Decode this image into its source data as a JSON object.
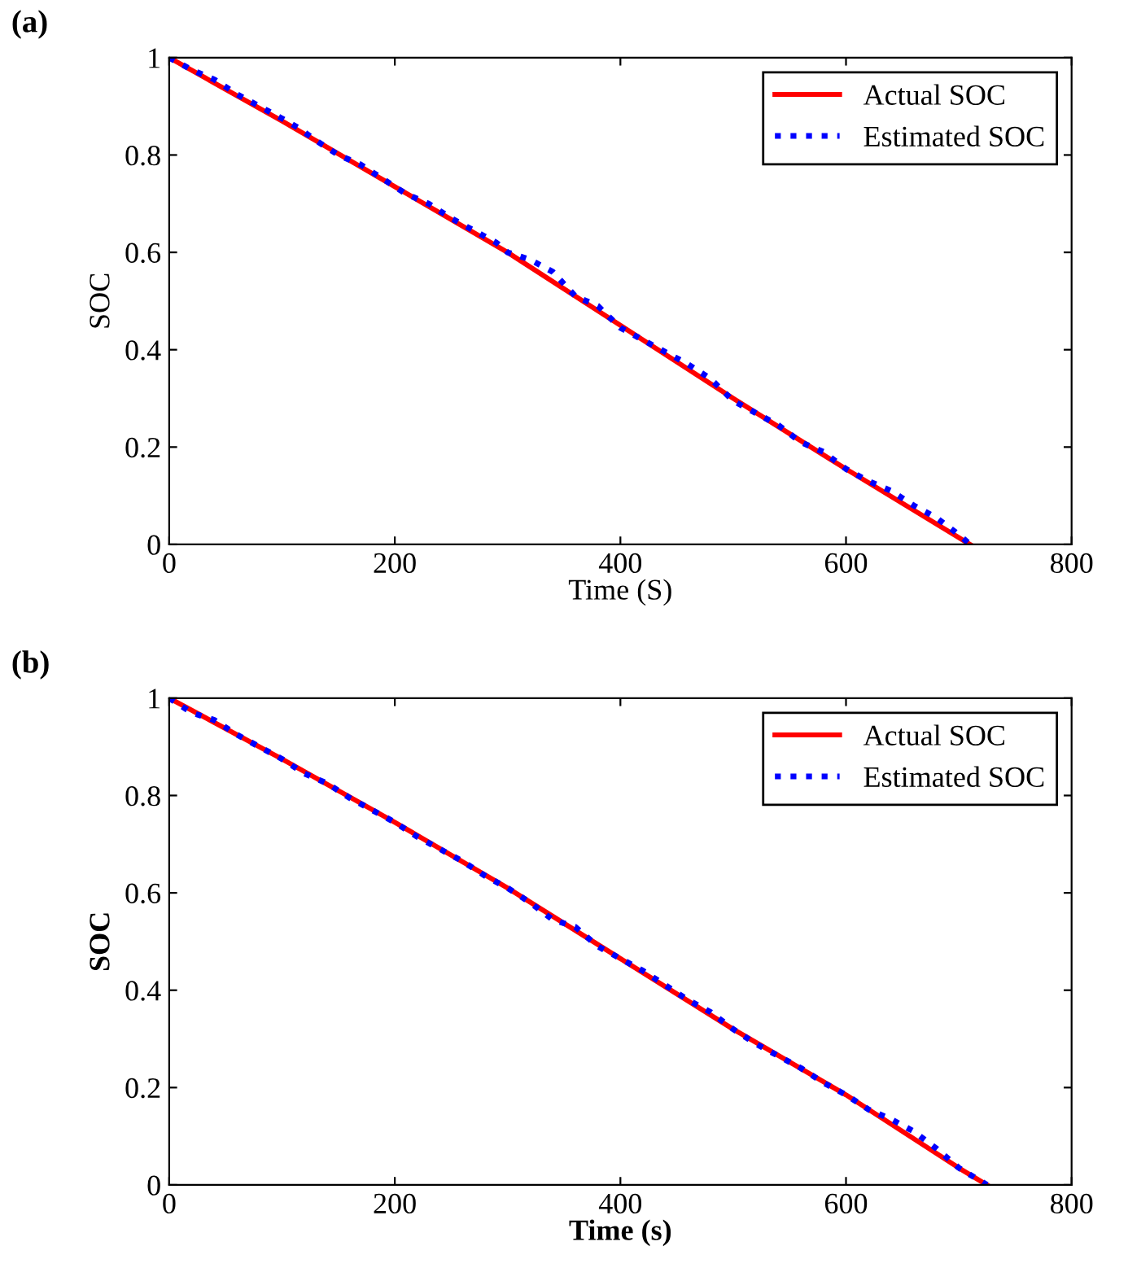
{
  "chart_data": [
    {
      "type": "line",
      "title": "(a)",
      "xlabel": "Time (S)",
      "ylabel": "SOC",
      "xlim": [
        0,
        800
      ],
      "ylim": [
        0,
        1
      ],
      "xticks": [
        0,
        200,
        400,
        600,
        800
      ],
      "yticks": [
        0,
        0.2,
        0.4,
        0.6,
        0.8,
        1
      ],
      "grid": false,
      "legend": "top right",
      "marker": "none",
      "series": [
        {
          "name": "Actual SOC",
          "color": "#ff0000",
          "line_style": "solid",
          "x": [
            0,
            100,
            200,
            300,
            400,
            500,
            600,
            710
          ],
          "values": [
            1,
            0.87,
            0.735,
            0.6,
            0.45,
            0.3,
            0.155,
            0
          ]
        },
        {
          "name": "Estimated SOC",
          "color": "#0000ff",
          "line_style": "dotted",
          "x": [
            0,
            20,
            40,
            60,
            80,
            100,
            115,
            130,
            150,
            170,
            190,
            210,
            230,
            250,
            270,
            290,
            300,
            320,
            340,
            360,
            380,
            400,
            420,
            440,
            460,
            480,
            500,
            520,
            540,
            560,
            580,
            600,
            620,
            640,
            660,
            680,
            700,
            710
          ],
          "values": [
            1,
            0.975,
            0.955,
            0.925,
            0.9,
            0.875,
            0.855,
            0.83,
            0.8,
            0.78,
            0.75,
            0.72,
            0.7,
            0.67,
            0.645,
            0.62,
            0.6,
            0.585,
            0.56,
            0.51,
            0.49,
            0.445,
            0.42,
            0.395,
            0.37,
            0.34,
            0.295,
            0.27,
            0.245,
            0.21,
            0.19,
            0.155,
            0.13,
            0.11,
            0.08,
            0.055,
            0.02,
            0
          ]
        }
      ]
    },
    {
      "type": "line",
      "title": "(b)",
      "xlabel": "Time (s)",
      "ylabel": "SOC",
      "xlim": [
        0,
        800
      ],
      "ylim": [
        0,
        1
      ],
      "xticks": [
        0,
        200,
        400,
        600,
        800
      ],
      "yticks": [
        0,
        0.2,
        0.4,
        0.6,
        0.8,
        1
      ],
      "grid": false,
      "legend": "top right",
      "marker": "none",
      "series": [
        {
          "name": "Actual SOC",
          "color": "#ff0000",
          "line_style": "solid",
          "x": [
            0,
            100,
            200,
            300,
            400,
            500,
            600,
            700,
            725
          ],
          "values": [
            1,
            0.875,
            0.745,
            0.61,
            0.465,
            0.32,
            0.185,
            0.035,
            0
          ]
        },
        {
          "name": "Estimated SOC",
          "color": "#0000ff",
          "line_style": "dotted",
          "x": [
            0,
            20,
            40,
            60,
            80,
            100,
            120,
            140,
            160,
            180,
            200,
            220,
            240,
            260,
            280,
            300,
            320,
            340,
            360,
            380,
            400,
            420,
            440,
            460,
            480,
            500,
            520,
            540,
            560,
            580,
            600,
            620,
            640,
            660,
            680,
            700,
            725
          ],
          "values": [
            1,
            0.97,
            0.955,
            0.925,
            0.9,
            0.875,
            0.845,
            0.825,
            0.795,
            0.77,
            0.745,
            0.715,
            0.69,
            0.665,
            0.635,
            0.61,
            0.58,
            0.545,
            0.53,
            0.49,
            0.465,
            0.44,
            0.41,
            0.38,
            0.355,
            0.32,
            0.29,
            0.265,
            0.24,
            0.21,
            0.185,
            0.155,
            0.135,
            0.11,
            0.075,
            0.035,
            0
          ]
        }
      ]
    }
  ]
}
